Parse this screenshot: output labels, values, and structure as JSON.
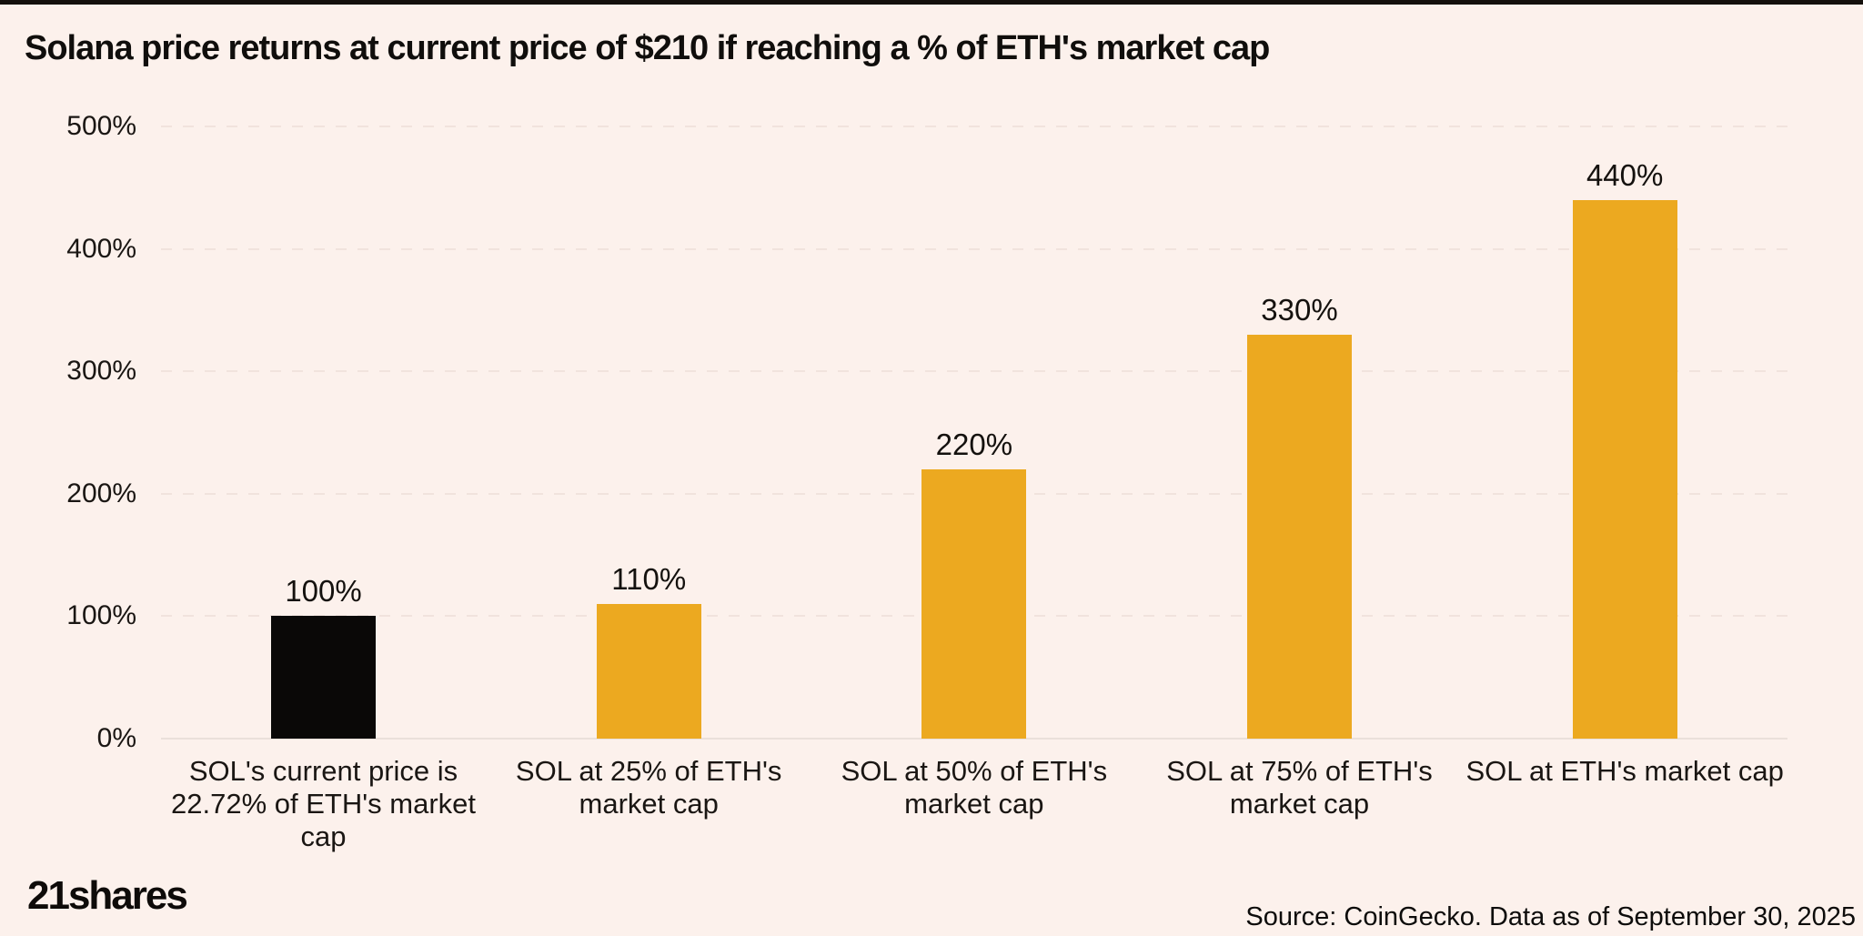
{
  "colors": {
    "background": "#FCF1EC",
    "bar_orange": "#ECA920",
    "bar_black": "#0A0807",
    "gridline": "#F1E3DD",
    "zero_line": "#EAE0DA",
    "text": "#1A1613",
    "top_strip": "#14100C"
  },
  "chart_data": {
    "type": "bar",
    "title": "Solana price returns at current price of $210 if reaching a % of ETH's market cap",
    "categories": [
      "SOL's current price is 22.72% of ETH's market cap",
      "SOL at 25% of ETH's market cap",
      "SOL at 50% of ETH's market cap",
      "SOL at 75% of ETH's market cap",
      "SOL at ETH's market cap"
    ],
    "category_display_lines": [
      [
        "SOL's current price is",
        "22.72% of ETH's market",
        "cap"
      ],
      [
        "SOL at 25% of ETH's",
        "market cap"
      ],
      [
        "SOL at 50% of ETH's",
        "market cap"
      ],
      [
        "SOL at 75% of ETH's",
        "market cap"
      ],
      [
        "SOL at ETH's market cap"
      ]
    ],
    "values": [
      100,
      110,
      220,
      330,
      440
    ],
    "value_labels": [
      "100%",
      "110%",
      "220%",
      "330%",
      "440%"
    ],
    "bar_colors": [
      "#0A0807",
      "#ECA920",
      "#ECA920",
      "#ECA920",
      "#ECA920"
    ],
    "xlabel": "",
    "ylabel": "",
    "ylim": [
      0,
      500
    ],
    "yticks": [
      {
        "value": 0,
        "label": "0%"
      },
      {
        "value": 100,
        "label": "100%"
      },
      {
        "value": 200,
        "label": "200%"
      },
      {
        "value": 300,
        "label": "300%"
      },
      {
        "value": 400,
        "label": "400%"
      },
      {
        "value": 500,
        "label": "500%"
      }
    ],
    "grid": "horizontal-dashed",
    "legend": "none"
  },
  "footer": {
    "logo_text": "21shares",
    "source_text": "Source: CoinGecko. Data as of September 30, 2025"
  }
}
